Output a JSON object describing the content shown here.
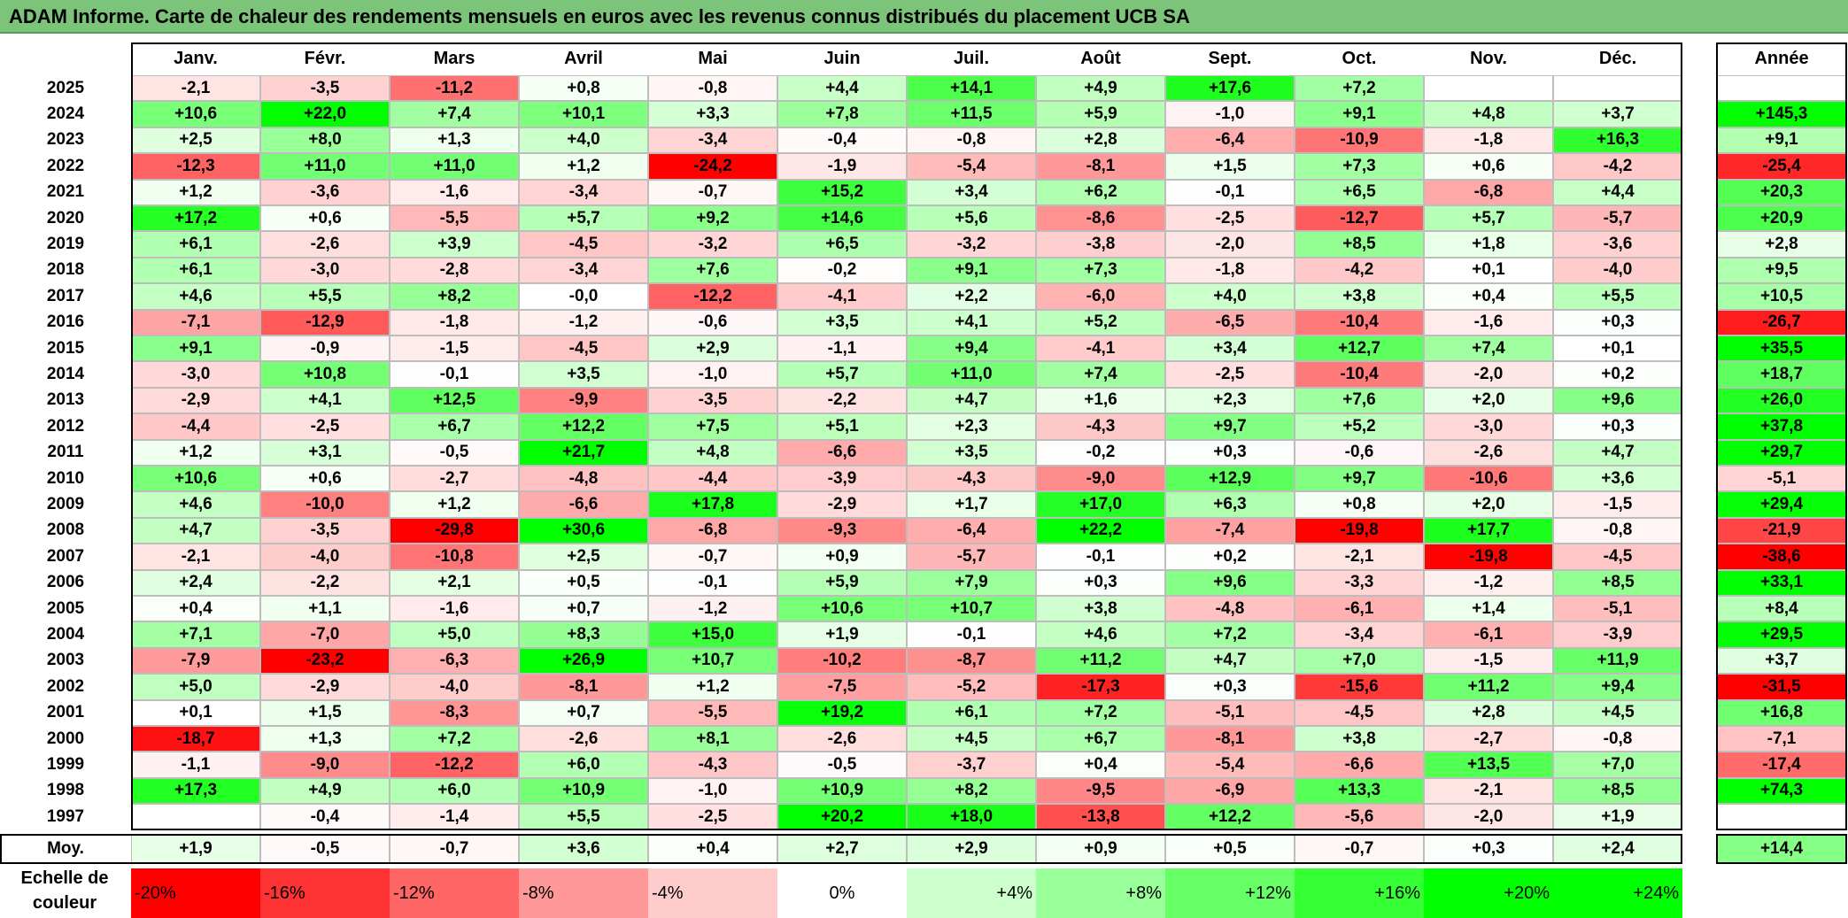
{
  "title": "ADAM Informe. Carte de chaleur des rendements mensuels en euros avec les revenus connus distribués du placement UCB SA",
  "chart_data": {
    "type": "heatmap",
    "title": "ADAM Informe. Carte de chaleur des rendements mensuels en euros avec les revenus connus distribués du placement UCB SA",
    "months": [
      "Janv.",
      "Févr.",
      "Mars",
      "Avril",
      "Mai",
      "Juin",
      "Juil.",
      "Août",
      "Sept.",
      "Oct.",
      "Nov.",
      "Déc."
    ],
    "year_header": "Année",
    "rows": [
      {
        "year": "2025",
        "values": [
          "-2,1",
          "-3,5",
          "-11,2",
          "+0,8",
          "-0,8",
          "+4,4",
          "+14,1",
          "+4,9",
          "+17,6",
          "+7,2",
          "",
          ""
        ],
        "annual": ""
      },
      {
        "year": "2024",
        "values": [
          "+10,6",
          "+22,0",
          "+7,4",
          "+10,1",
          "+3,3",
          "+7,8",
          "+11,5",
          "+5,9",
          "-1,0",
          "+9,1",
          "+4,8",
          "+3,7"
        ],
        "annual": "+145,3"
      },
      {
        "year": "2023",
        "values": [
          "+2,5",
          "+8,0",
          "+1,3",
          "+4,0",
          "-3,4",
          "-0,4",
          "-0,8",
          "+2,8",
          "-6,4",
          "-10,9",
          "-1,8",
          "+16,3"
        ],
        "annual": "+9,1"
      },
      {
        "year": "2022",
        "values": [
          "-12,3",
          "+11,0",
          "+11,0",
          "+1,2",
          "-24,2",
          "-1,9",
          "-5,4",
          "-8,1",
          "+1,5",
          "+7,3",
          "+0,6",
          "-4,2"
        ],
        "annual": "-25,4"
      },
      {
        "year": "2021",
        "values": [
          "+1,2",
          "-3,6",
          "-1,6",
          "-3,4",
          "-0,7",
          "+15,2",
          "+3,4",
          "+6,2",
          "-0,1",
          "+6,5",
          "-6,8",
          "+4,4"
        ],
        "annual": "+20,3"
      },
      {
        "year": "2020",
        "values": [
          "+17,2",
          "+0,6",
          "-5,5",
          "+5,7",
          "+9,2",
          "+14,6",
          "+5,6",
          "-8,6",
          "-2,5",
          "-12,7",
          "+5,7",
          "-5,7"
        ],
        "annual": "+20,9"
      },
      {
        "year": "2019",
        "values": [
          "+6,1",
          "-2,6",
          "+3,9",
          "-4,5",
          "-3,2",
          "+6,5",
          "-3,2",
          "-3,8",
          "-2,0",
          "+8,5",
          "+1,8",
          "-3,6"
        ],
        "annual": "+2,8"
      },
      {
        "year": "2018",
        "values": [
          "+6,1",
          "-3,0",
          "-2,8",
          "-3,4",
          "+7,6",
          "-0,2",
          "+9,1",
          "+7,3",
          "-1,8",
          "-4,2",
          "+0,1",
          "-4,0"
        ],
        "annual": "+9,5"
      },
      {
        "year": "2017",
        "values": [
          "+4,6",
          "+5,5",
          "+8,2",
          "-0,0",
          "-12,2",
          "-4,1",
          "+2,2",
          "-6,0",
          "+4,0",
          "+3,8",
          "+0,4",
          "+5,5"
        ],
        "annual": "+10,5"
      },
      {
        "year": "2016",
        "values": [
          "-7,1",
          "-12,9",
          "-1,8",
          "-1,2",
          "-0,6",
          "+3,5",
          "+4,1",
          "+5,2",
          "-6,5",
          "-10,4",
          "-1,6",
          "+0,3"
        ],
        "annual": "-26,7"
      },
      {
        "year": "2015",
        "values": [
          "+9,1",
          "-0,9",
          "-1,5",
          "-4,5",
          "+2,9",
          "-1,1",
          "+9,4",
          "-4,1",
          "+3,4",
          "+12,7",
          "+7,4",
          "+0,1"
        ],
        "annual": "+35,5"
      },
      {
        "year": "2014",
        "values": [
          "-3,0",
          "+10,8",
          "-0,1",
          "+3,5",
          "-1,0",
          "+5,7",
          "+11,0",
          "+7,4",
          "-2,5",
          "-10,4",
          "-2,0",
          "+0,2"
        ],
        "annual": "+18,7"
      },
      {
        "year": "2013",
        "values": [
          "-2,9",
          "+4,1",
          "+12,5",
          "-9,9",
          "-3,5",
          "-2,2",
          "+4,7",
          "+1,6",
          "+2,3",
          "+7,6",
          "+2,0",
          "+9,6"
        ],
        "annual": "+26,0"
      },
      {
        "year": "2012",
        "values": [
          "-4,4",
          "-2,5",
          "+6,7",
          "+12,2",
          "+7,5",
          "+5,1",
          "+2,3",
          "-4,3",
          "+9,7",
          "+5,2",
          "-3,0",
          "+0,3"
        ],
        "annual": "+37,8"
      },
      {
        "year": "2011",
        "values": [
          "+1,2",
          "+3,1",
          "-0,5",
          "+21,7",
          "+4,8",
          "-6,6",
          "+3,5",
          "-0,2",
          "+0,3",
          "-0,6",
          "-2,6",
          "+4,7"
        ],
        "annual": "+29,7"
      },
      {
        "year": "2010",
        "values": [
          "+10,6",
          "+0,6",
          "-2,7",
          "-4,8",
          "-4,4",
          "-3,9",
          "-4,3",
          "-9,0",
          "+12,9",
          "+9,7",
          "-10,6",
          "+3,6"
        ],
        "annual": "-5,1"
      },
      {
        "year": "2009",
        "values": [
          "+4,6",
          "-10,0",
          "+1,2",
          "-6,6",
          "+17,8",
          "-2,9",
          "+1,7",
          "+17,0",
          "+6,3",
          "+0,8",
          "+2,0",
          "-1,5"
        ],
        "annual": "+29,4"
      },
      {
        "year": "2008",
        "values": [
          "+4,7",
          "-3,5",
          "-29,8",
          "+30,6",
          "-6,8",
          "-9,3",
          "-6,4",
          "+22,2",
          "-7,4",
          "-19,8",
          "+17,7",
          "-0,8"
        ],
        "annual": "-21,9"
      },
      {
        "year": "2007",
        "values": [
          "-2,1",
          "-4,0",
          "-10,8",
          "+2,5",
          "-0,7",
          "+0,9",
          "-5,7",
          "-0,1",
          "+0,2",
          "-2,1",
          "-19,8",
          "-4,5"
        ],
        "annual": "-38,6"
      },
      {
        "year": "2006",
        "values": [
          "+2,4",
          "-2,2",
          "+2,1",
          "+0,5",
          "-0,1",
          "+5,9",
          "+7,9",
          "+0,3",
          "+9,6",
          "-3,3",
          "-1,2",
          "+8,5"
        ],
        "annual": "+33,1"
      },
      {
        "year": "2005",
        "values": [
          "+0,4",
          "+1,1",
          "-1,6",
          "+0,7",
          "-1,2",
          "+10,6",
          "+10,7",
          "+3,8",
          "-4,8",
          "-6,1",
          "+1,4",
          "-5,1"
        ],
        "annual": "+8,4"
      },
      {
        "year": "2004",
        "values": [
          "+7,1",
          "-7,0",
          "+5,0",
          "+8,3",
          "+15,0",
          "+1,9",
          "-0,1",
          "+4,6",
          "+7,2",
          "-3,4",
          "-6,1",
          "-3,9"
        ],
        "annual": "+29,5"
      },
      {
        "year": "2003",
        "values": [
          "-7,9",
          "-23,2",
          "-6,3",
          "+26,9",
          "+10,7",
          "-10,2",
          "-8,7",
          "+11,2",
          "+4,7",
          "+7,0",
          "-1,5",
          "+11,9"
        ],
        "annual": "+3,7"
      },
      {
        "year": "2002",
        "values": [
          "+5,0",
          "-2,9",
          "-4,0",
          "-8,1",
          "+1,2",
          "-7,5",
          "-5,2",
          "-17,3",
          "+0,3",
          "-15,6",
          "+11,2",
          "+9,4"
        ],
        "annual": "-31,5"
      },
      {
        "year": "2001",
        "values": [
          "+0,1",
          "+1,5",
          "-8,3",
          "+0,7",
          "-5,5",
          "+19,2",
          "+6,1",
          "+7,2",
          "-5,1",
          "-4,5",
          "+2,8",
          "+4,5"
        ],
        "annual": "+16,8"
      },
      {
        "year": "2000",
        "values": [
          "-18,7",
          "+1,3",
          "+7,2",
          "-2,6",
          "+8,1",
          "-2,6",
          "+4,5",
          "+6,7",
          "-8,1",
          "+3,8",
          "-2,7",
          "-0,8"
        ],
        "annual": "-7,1"
      },
      {
        "year": "1999",
        "values": [
          "-1,1",
          "-9,0",
          "-12,2",
          "+6,0",
          "-4,3",
          "-0,5",
          "-3,7",
          "+0,4",
          "-5,4",
          "-6,6",
          "+13,5",
          "+7,0"
        ],
        "annual": "-17,4"
      },
      {
        "year": "1998",
        "values": [
          "+17,3",
          "+4,9",
          "+6,0",
          "+10,9",
          "-1,0",
          "+10,9",
          "+8,2",
          "-9,5",
          "-6,9",
          "+13,3",
          "-2,1",
          "+8,5"
        ],
        "annual": "+74,3"
      },
      {
        "year": "1997",
        "values": [
          "",
          "-0,4",
          "-1,4",
          "+5,5",
          "-2,5",
          "+20,2",
          "+18,0",
          "-13,8",
          "+12,2",
          "-5,6",
          "-2,0",
          "+1,9"
        ],
        "annual": ""
      }
    ],
    "average": {
      "label": "Moy.",
      "values": [
        "+1,9",
        "-0,5",
        "-0,7",
        "+3,6",
        "+0,4",
        "+2,7",
        "+2,9",
        "+0,9",
        "+0,5",
        "-0,7",
        "+0,3",
        "+2,4"
      ],
      "annual": "+14,4"
    },
    "scale": {
      "label": "Echelle de couleur",
      "steps": [
        "-20%",
        "-16%",
        "-12%",
        "-8%",
        "-4%",
        "0%",
        "+4%",
        "+8%",
        "+12%",
        "+16%",
        "+20%",
        "+24%"
      ]
    },
    "colors": {
      "negative": "#ff0000",
      "neutral": "#ffffff",
      "positive": "#00ff00",
      "title_bg": "#7cc47a"
    }
  }
}
